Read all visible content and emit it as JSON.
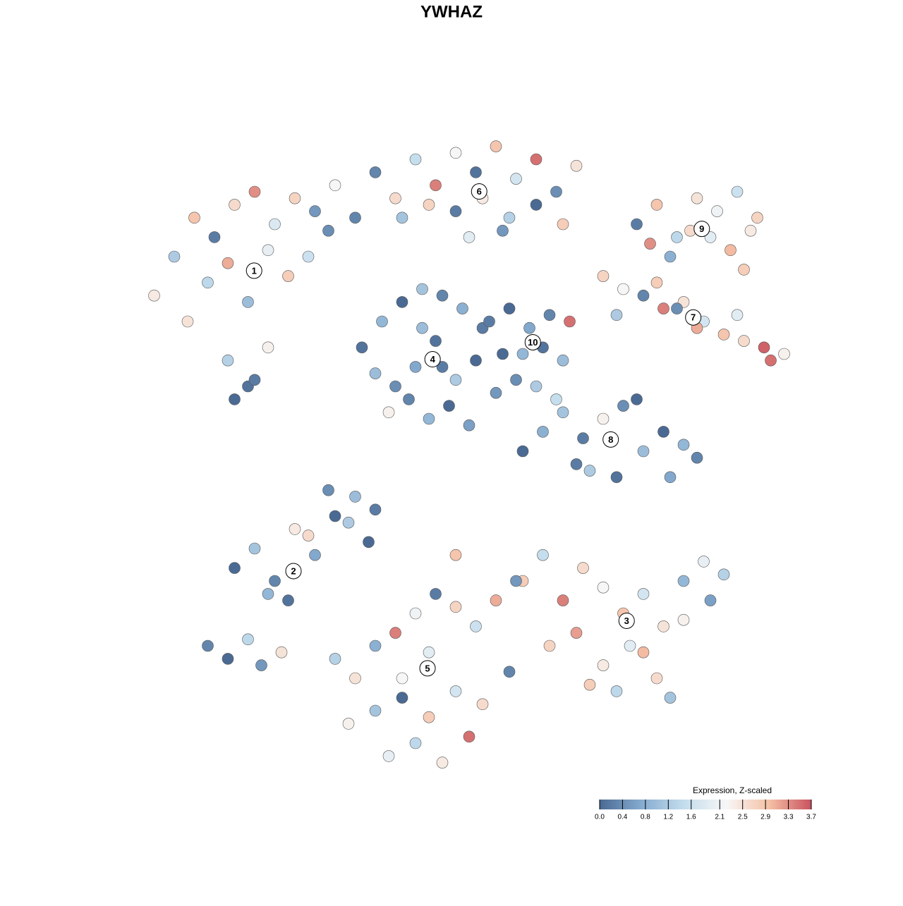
{
  "chart_data": {
    "type": "scatter",
    "title": "YWHAZ",
    "xlim": [
      0,
      100
    ],
    "ylim": [
      0,
      100
    ],
    "colorbar_title": "Expression, Z-scaled",
    "clim": [
      0,
      3.7
    ],
    "cticks": [
      {
        "value": 0,
        "label": "0.0"
      },
      0.4,
      0.8,
      1.2,
      1.6,
      2.1,
      2.5,
      2.9,
      3.3,
      3.7
    ],
    "colorscale": [
      "#4a6a94",
      "#86acd0",
      "#c4dded",
      "#f7f7f7",
      "#f5c1a6",
      "#c9525e"
    ],
    "point_outline": "#555555",
    "series": [
      {
        "name": "1",
        "x": [
          3,
          6,
          9,
          12,
          15,
          18,
          21,
          24,
          27,
          30,
          33,
          8,
          11,
          14,
          17,
          20,
          23,
          26,
          29,
          14,
          17,
          20,
          15,
          18
        ],
        "y": [
          74,
          80,
          86,
          83,
          88,
          90,
          85,
          89,
          87,
          91,
          86,
          70,
          76,
          79,
          73,
          81,
          77,
          80,
          84,
          64,
          60,
          66,
          58,
          61
        ],
        "values": [
          2.4,
          1.2,
          2.9,
          0.2,
          2.6,
          3.3,
          1.8,
          2.7,
          0.5,
          2.2,
          0.3,
          2.5,
          1.4,
          3.1,
          1.0,
          2.0,
          2.8,
          1.6,
          0.4,
          1.3,
          0.1,
          2.3,
          0.0,
          0.2
        ]
      },
      {
        "name": "2",
        "x": [
          15,
          18,
          21,
          24,
          27,
          30,
          33,
          36,
          20,
          23,
          26,
          29,
          32,
          35,
          11,
          14,
          17,
          19,
          22
        ],
        "y": [
          32,
          35,
          30,
          38,
          34,
          40,
          43,
          41,
          28,
          27,
          37,
          44,
          39,
          36,
          20,
          18,
          21,
          17,
          19
        ],
        "values": [
          0.0,
          1.1,
          0.3,
          2.4,
          0.7,
          0.0,
          1.0,
          0.2,
          0.9,
          0.1,
          2.6,
          0.4,
          1.2,
          0.0,
          0.3,
          0.0,
          1.4,
          0.5,
          2.5
        ]
      },
      {
        "name": "3",
        "x": [
          58,
          61,
          64,
          67,
          70,
          73,
          76,
          79,
          82,
          85,
          88,
          62,
          66,
          70,
          74,
          78,
          82,
          86,
          68,
          72,
          76,
          80
        ],
        "y": [
          30,
          34,
          27,
          32,
          29,
          25,
          28,
          23,
          30,
          33,
          31,
          20,
          22,
          17,
          20,
          15,
          24,
          27,
          14,
          13,
          19,
          12
        ],
        "values": [
          2.8,
          1.5,
          3.4,
          2.6,
          2.2,
          2.9,
          1.7,
          2.5,
          0.9,
          2.0,
          1.3,
          2.7,
          3.2,
          2.4,
          1.9,
          2.6,
          2.3,
          0.6,
          2.8,
          1.4,
          3.0,
          1.1
        ]
      },
      {
        "name": "4",
        "x": [
          34,
          37,
          40,
          43,
          46,
          49,
          52,
          55,
          36,
          39,
          42,
          45,
          48,
          51,
          54,
          38,
          41,
          44,
          47,
          50,
          43,
          46
        ],
        "y": [
          66,
          70,
          73,
          75,
          74,
          72,
          69,
          65,
          62,
          60,
          63,
          67,
          61,
          64,
          59,
          56,
          58,
          55,
          57,
          54,
          69,
          63
        ],
        "values": [
          0.1,
          0.9,
          0.0,
          1.1,
          0.3,
          0.8,
          0.2,
          0.0,
          1.0,
          0.4,
          0.7,
          0.1,
          1.2,
          0.0,
          0.5,
          2.3,
          0.3,
          0.9,
          0.0,
          0.6,
          1.0,
          0.2
        ]
      },
      {
        "name": "5",
        "x": [
          30,
          33,
          36,
          39,
          42,
          45,
          48,
          51,
          54,
          57,
          32,
          36,
          40,
          44,
          48,
          52,
          56,
          38,
          42,
          46,
          50,
          44,
          40,
          48
        ],
        "y": [
          18,
          15,
          20,
          22,
          25,
          28,
          26,
          23,
          27,
          30,
          8,
          10,
          12,
          9,
          13,
          11,
          16,
          3,
          5,
          2,
          6,
          19,
          15,
          34
        ],
        "values": [
          1.3,
          2.5,
          0.8,
          3.4,
          2.1,
          0.2,
          2.7,
          1.6,
          3.1,
          0.5,
          2.3,
          1.1,
          0.0,
          2.8,
          1.7,
          2.6,
          0.3,
          2.0,
          1.4,
          2.4,
          3.5,
          1.9,
          2.2,
          2.9
        ]
      },
      {
        "name": "6",
        "x": [
          36,
          39,
          42,
          45,
          48,
          51,
          54,
          57,
          60,
          63,
          66,
          40,
          44,
          48,
          52,
          56,
          60,
          64,
          50,
          55
        ],
        "y": [
          93,
          89,
          95,
          91,
          96,
          93,
          97,
          92,
          95,
          90,
          94,
          86,
          88,
          87,
          89,
          86,
          88,
          85,
          83,
          84
        ],
        "values": [
          0.3,
          2.6,
          1.5,
          3.4,
          2.2,
          0.1,
          2.9,
          1.7,
          3.5,
          0.4,
          2.5,
          1.1,
          2.7,
          0.2,
          2.4,
          1.3,
          0.0,
          2.8,
          1.9,
          0.5
        ]
      },
      {
        "name": "7",
        "x": [
          70,
          73,
          76,
          79,
          82,
          85,
          88,
          91,
          94,
          97,
          72,
          78,
          84,
          90,
          95,
          81
        ],
        "y": [
          77,
          75,
          74,
          72,
          73,
          70,
          68,
          67,
          66,
          65,
          71,
          76,
          69,
          71,
          64,
          72
        ],
        "values": [
          2.7,
          2.2,
          0.3,
          3.4,
          2.5,
          1.7,
          2.9,
          2.6,
          3.6,
          2.3,
          1.2,
          2.8,
          3.1,
          1.9,
          3.5,
          0.4
        ]
      },
      {
        "name": "8",
        "x": [
          58,
          61,
          64,
          67,
          70,
          73,
          76,
          79,
          82,
          84,
          68,
          72,
          75,
          80,
          63,
          66
        ],
        "y": [
          50,
          53,
          56,
          52,
          55,
          57,
          50,
          53,
          51,
          49,
          47,
          46,
          58,
          46,
          58,
          48
        ],
        "values": [
          0.0,
          0.8,
          1.1,
          0.2,
          2.3,
          0.4,
          1.0,
          0.0,
          0.9,
          0.3,
          1.2,
          0.1,
          0.0,
          0.7,
          1.5,
          0.2
        ]
      },
      {
        "name": "9",
        "x": [
          75,
          78,
          81,
          84,
          87,
          90,
          93,
          77,
          80,
          83,
          86,
          89,
          92,
          91
        ],
        "y": [
          85,
          88,
          83,
          89,
          87,
          90,
          86,
          82,
          80,
          84,
          83,
          81,
          84,
          78
        ],
        "values": [
          0.2,
          2.9,
          1.4,
          2.5,
          2.1,
          1.6,
          2.7,
          3.3,
          0.8,
          2.6,
          1.9,
          3.0,
          2.4,
          2.8
        ]
      },
      {
        "name": "10",
        "x": [
          53,
          56,
          59,
          62,
          65,
          58,
          61,
          64,
          60,
          57
        ],
        "y": [
          70,
          72,
          69,
          71,
          70,
          65,
          66,
          64,
          60,
          61
        ],
        "values": [
          0.2,
          0.0,
          0.7,
          0.3,
          3.5,
          0.9,
          0.1,
          1.0,
          1.2,
          0.4
        ]
      }
    ]
  }
}
